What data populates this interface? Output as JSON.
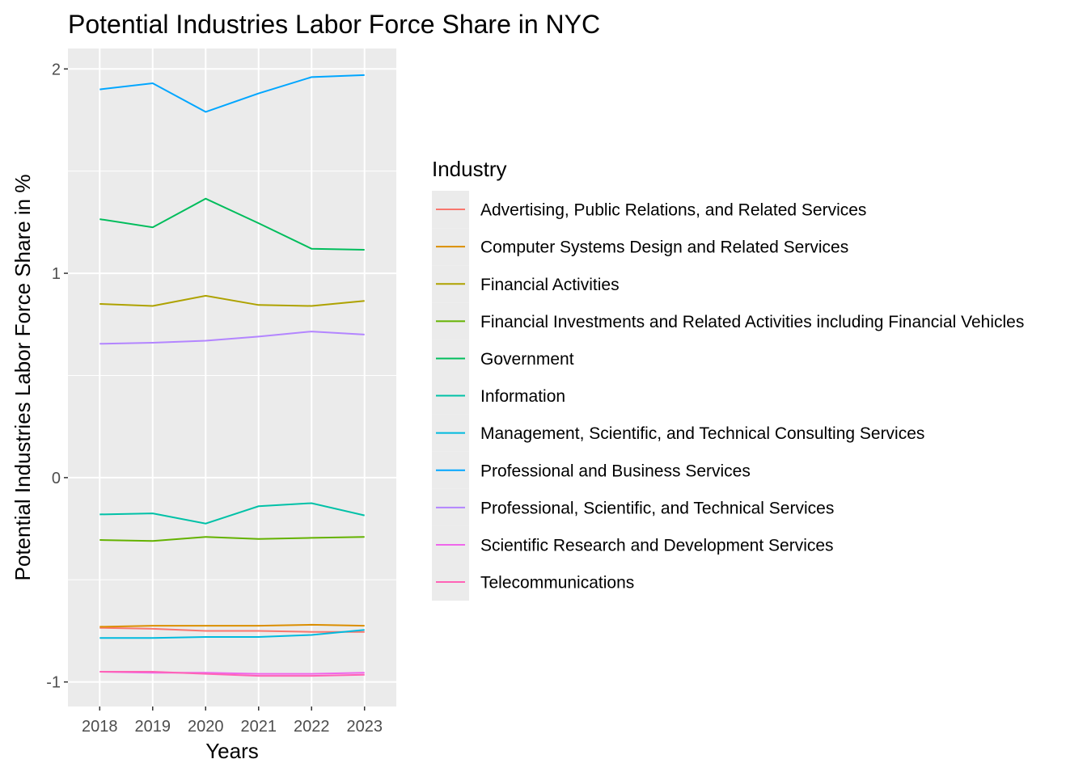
{
  "chart_data": {
    "type": "line",
    "title": "Potential Industries Labor Force Share in NYC",
    "xlabel": "Years",
    "ylabel": "Potential Industries Labor Force Share in %",
    "x": [
      2018,
      2019,
      2020,
      2021,
      2022,
      2023
    ],
    "x_tick_labels": [
      "2018",
      "2019",
      "2020",
      "2021",
      "2022",
      "2023"
    ],
    "ylim": [
      -1.12,
      2.1
    ],
    "y_ticks": [
      -1,
      0,
      1,
      2
    ],
    "y_tick_labels": [
      "-1",
      "0",
      "1",
      "2"
    ],
    "grid": true,
    "legend_title": "Industry",
    "legend_position": "right",
    "series": [
      {
        "name": "Advertising, Public Relations, and Related Services",
        "color": "#F8766D",
        "values": [
          -0.735,
          -0.74,
          -0.75,
          -0.75,
          -0.755,
          -0.755
        ]
      },
      {
        "name": "Computer Systems Design and Related Services",
        "color": "#DB8E00",
        "values": [
          -0.73,
          -0.725,
          -0.725,
          -0.725,
          -0.72,
          -0.725
        ]
      },
      {
        "name": "Financial Activities",
        "color": "#AEA200",
        "values": [
          0.85,
          0.84,
          0.89,
          0.845,
          0.84,
          0.865
        ]
      },
      {
        "name": "Financial Investments and Related Activities including Financial Vehicles",
        "color": "#64B200",
        "values": [
          -0.305,
          -0.31,
          -0.29,
          -0.3,
          -0.295,
          -0.29
        ]
      },
      {
        "name": "Government",
        "color": "#00BD5C",
        "values": [
          1.265,
          1.225,
          1.365,
          1.245,
          1.12,
          1.115
        ]
      },
      {
        "name": "Information",
        "color": "#00C1A7",
        "values": [
          -0.18,
          -0.175,
          -0.225,
          -0.14,
          -0.125,
          -0.185
        ]
      },
      {
        "name": "Management, Scientific, and Technical Consulting Services",
        "color": "#00BADE",
        "values": [
          -0.785,
          -0.785,
          -0.78,
          -0.78,
          -0.77,
          -0.745
        ]
      },
      {
        "name": "Professional and Business Services",
        "color": "#00A6FF",
        "values": [
          1.9,
          1.93,
          1.79,
          1.88,
          1.96,
          1.97
        ]
      },
      {
        "name": "Professional, Scientific, and Technical Services",
        "color": "#B385FF",
        "values": [
          0.655,
          0.66,
          0.67,
          0.69,
          0.715,
          0.7
        ]
      },
      {
        "name": "Scientific Research and Development Services",
        "color": "#EF67EB",
        "values": [
          -0.95,
          -0.955,
          -0.955,
          -0.96,
          -0.96,
          -0.955
        ]
      },
      {
        "name": "Telecommunications",
        "color": "#FF63B6",
        "values": [
          -0.95,
          -0.95,
          -0.96,
          -0.97,
          -0.97,
          -0.965
        ]
      }
    ]
  }
}
